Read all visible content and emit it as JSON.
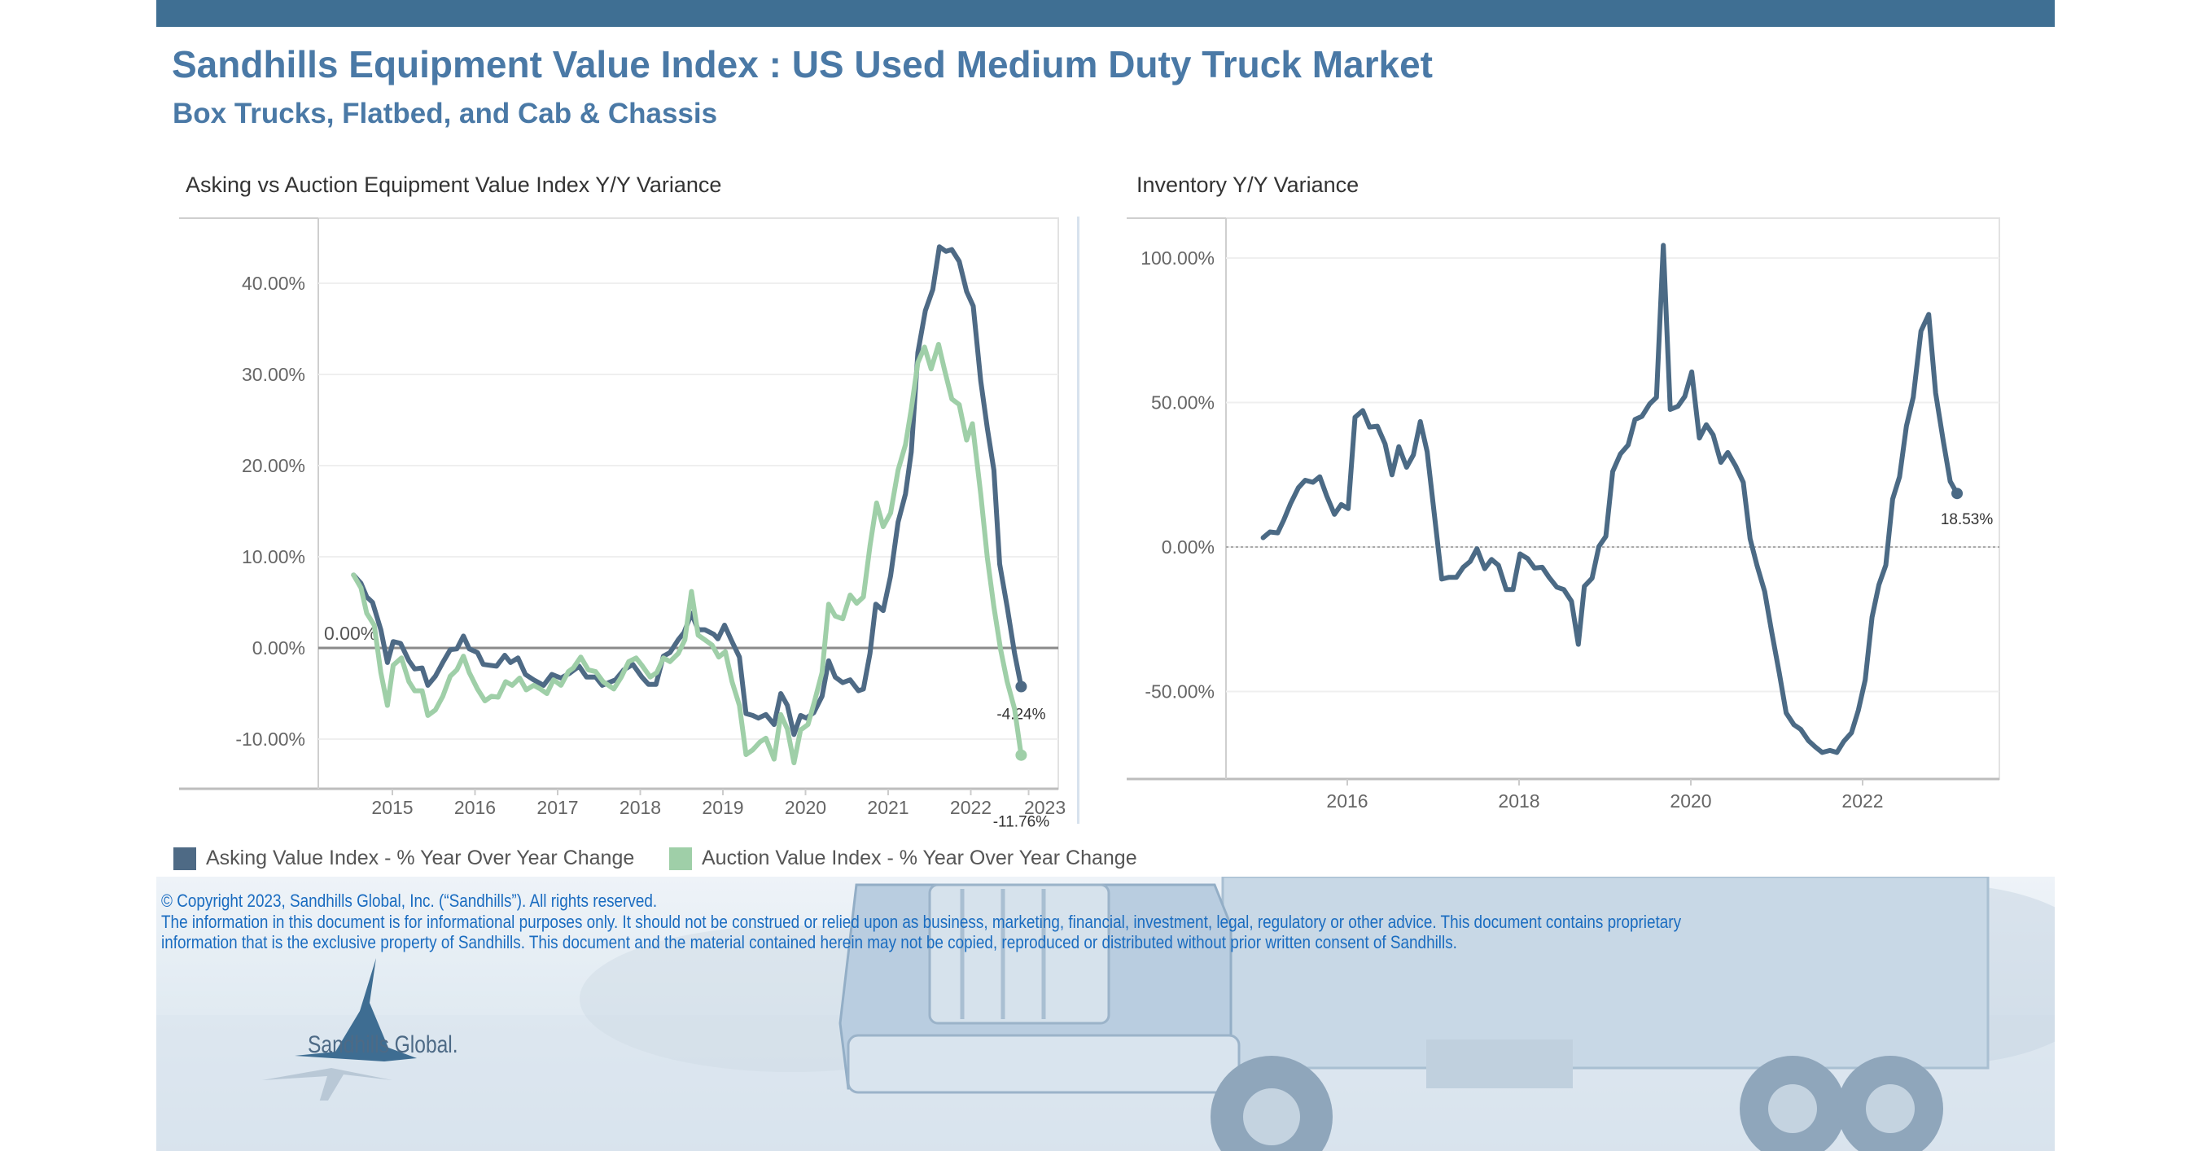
{
  "header": {
    "title": "Sandhills Equipment Value Index : US Used Medium Duty Truck Market",
    "subtitle": "Box Trucks, Flatbed, and Cab & Chassis"
  },
  "colors": {
    "brand": "#4a79a6",
    "asking": "#4e6a85",
    "auction": "#9fcfa8",
    "inventory": "#4b6a85",
    "footer_text": "#1a6cc0"
  },
  "chart_data": [
    {
      "type": "line",
      "title": "Asking vs Auction Equipment Value Index Y/Y Variance",
      "xlabel": "",
      "ylabel": "",
      "ylim": [
        -15.5,
        46
      ],
      "xlim": [
        2014.1,
        2023.1
      ],
      "x_ticks": [
        "2015",
        "2016",
        "2017",
        "2018",
        "2019",
        "2020",
        "2021",
        "2022",
        "2023"
      ],
      "x_tick_values": [
        2015,
        2016,
        2017,
        2018,
        2019,
        2020,
        2021,
        2022,
        2022.7
      ],
      "y_ticks": [
        "40.00%",
        "30.00%",
        "20.00%",
        "10.00%",
        "0.00%",
        "-10.00%"
      ],
      "y_tick_values": [
        40,
        30,
        20,
        10,
        0,
        -10
      ],
      "reference_line": {
        "value": 0,
        "label": "0.00%"
      },
      "legend_position": "bottom-left",
      "legend": [
        "Asking Value Index - % Year Over Year Change",
        "Auction Value Index - % Year Over Year Change"
      ],
      "series": [
        {
          "name": "Asking Value Index - % Year Over Year Change",
          "end_label": "-4.24%",
          "x": [
            2014.53,
            2014.62,
            2014.69,
            2014.76,
            2014.86,
            2014.94,
            2015.01,
            2015.1,
            2015.2,
            2015.27,
            2015.36,
            2015.43,
            2015.52,
            2015.61,
            2015.7,
            2015.78,
            2015.86,
            2015.93,
            2016.03,
            2016.1,
            2016.26,
            2016.36,
            2016.43,
            2016.52,
            2016.61,
            2016.71,
            2016.83,
            2016.93,
            2017.04,
            2017.14,
            2017.26,
            2017.35,
            2017.46,
            2017.54,
            2017.7,
            2017.8,
            2017.91,
            2018.02,
            2018.1,
            2018.19,
            2018.28,
            2018.36,
            2018.46,
            2018.53,
            2018.62,
            2018.7,
            2018.78,
            2018.89,
            2018.94,
            2019.02,
            2019.11,
            2019.2,
            2019.28,
            2019.36,
            2019.43,
            2019.52,
            2019.62,
            2019.7,
            2019.78,
            2019.86,
            2019.94,
            2020.01,
            2020.1,
            2020.2,
            2020.28,
            2020.36,
            2020.45,
            2020.54,
            2020.64,
            2020.7,
            2020.78,
            2020.85,
            2020.94,
            2021.03,
            2021.12,
            2021.21,
            2021.28,
            2021.36,
            2021.45,
            2021.54,
            2021.62,
            2021.7,
            2021.77,
            2021.86,
            2021.95,
            2022.03,
            2022.12,
            2022.2,
            2022.28,
            2022.35,
            2022.44,
            2022.53,
            2022.61
          ],
          "y": [
            8.0,
            7.1,
            5.6,
            5.0,
            2.0,
            -1.6,
            0.7,
            0.5,
            -1.4,
            -2.3,
            -2.2,
            -4.1,
            -3.1,
            -1.6,
            -0.2,
            -0.1,
            1.3,
            -0.1,
            -0.5,
            -1.8,
            -2.0,
            -0.8,
            -1.6,
            -1.1,
            -2.9,
            -3.5,
            -4.1,
            -2.9,
            -3.3,
            -2.8,
            -2.0,
            -3.2,
            -3.2,
            -4.1,
            -3.5,
            -2.4,
            -1.8,
            -3.2,
            -4.0,
            -4.0,
            -0.9,
            -0.5,
            0.9,
            1.7,
            3.8,
            2.0,
            2.0,
            1.5,
            1.0,
            2.5,
            0.7,
            -1.0,
            -7.2,
            -7.4,
            -7.7,
            -7.3,
            -8.4,
            -5.0,
            -6.3,
            -9.5,
            -7.4,
            -7.7,
            -7.1,
            -5.3,
            -1.4,
            -3.2,
            -3.8,
            -3.5,
            -4.7,
            -4.5,
            -0.6,
            4.8,
            4.1,
            7.9,
            13.8,
            16.9,
            21.5,
            32.4,
            37.0,
            39.3,
            44.0,
            43.5,
            43.7,
            42.4,
            39.1,
            37.5,
            29.3,
            24.1,
            19.5,
            9.2,
            4.5,
            -0.6,
            -4.24
          ]
        },
        {
          "name": "Auction Value Index - % Year Over Year Change",
          "end_label": "-11.76%",
          "x": [
            2014.53,
            2014.62,
            2014.69,
            2014.78,
            2014.86,
            2014.94,
            2015.01,
            2015.11,
            2015.2,
            2015.27,
            2015.36,
            2015.43,
            2015.52,
            2015.61,
            2015.7,
            2015.78,
            2015.86,
            2015.93,
            2016.03,
            2016.12,
            2016.2,
            2016.28,
            2016.37,
            2016.45,
            2016.54,
            2016.62,
            2016.71,
            2016.79,
            2016.87,
            2016.95,
            2017.04,
            2017.13,
            2017.19,
            2017.28,
            2017.37,
            2017.46,
            2017.55,
            2017.68,
            2017.77,
            2017.86,
            2017.95,
            2018.02,
            2018.12,
            2018.2,
            2018.28,
            2018.36,
            2018.46,
            2018.54,
            2018.62,
            2018.7,
            2018.78,
            2018.87,
            2018.95,
            2019.03,
            2019.11,
            2019.2,
            2019.28,
            2019.36,
            2019.45,
            2019.52,
            2019.62,
            2019.7,
            2019.78,
            2019.86,
            2019.94,
            2020.03,
            2020.11,
            2020.2,
            2020.28,
            2020.36,
            2020.45,
            2020.54,
            2020.62,
            2020.7,
            2020.78,
            2020.86,
            2020.94,
            2021.03,
            2021.12,
            2021.21,
            2021.28,
            2021.36,
            2021.44,
            2021.52,
            2021.61,
            2021.68,
            2021.77,
            2021.86,
            2021.95,
            2022.02,
            2022.12,
            2022.2,
            2022.28,
            2022.36,
            2022.44,
            2022.53,
            2022.61
          ],
          "y": [
            8.0,
            6.6,
            3.8,
            2.5,
            -2.7,
            -6.3,
            -1.9,
            -1.1,
            -3.7,
            -4.7,
            -4.7,
            -7.4,
            -6.8,
            -5.3,
            -3.1,
            -2.4,
            -0.9,
            -2.7,
            -4.5,
            -5.8,
            -5.3,
            -5.4,
            -3.7,
            -4.1,
            -3.3,
            -4.6,
            -4.1,
            -4.5,
            -5.0,
            -3.5,
            -4.1,
            -2.6,
            -2.2,
            -1.0,
            -2.4,
            -2.6,
            -3.7,
            -4.5,
            -3.2,
            -1.5,
            -1.1,
            -1.9,
            -3.2,
            -2.7,
            -1.1,
            -1.5,
            -0.6,
            0.9,
            6.2,
            1.4,
            0.9,
            0.3,
            -1.0,
            -0.4,
            -3.7,
            -6.3,
            -11.7,
            -11.2,
            -10.3,
            -9.9,
            -12.2,
            -7.3,
            -8.9,
            -12.6,
            -9.0,
            -8.4,
            -5.8,
            -2.7,
            4.8,
            3.5,
            3.2,
            5.8,
            4.9,
            5.6,
            11.2,
            15.9,
            13.3,
            14.8,
            19.5,
            22.3,
            26.2,
            31.3,
            33.0,
            30.6,
            33.3,
            30.6,
            27.3,
            26.7,
            22.8,
            24.6,
            16.9,
            9.9,
            4.5,
            -0.1,
            -3.7,
            -6.7,
            -11.76
          ]
        }
      ]
    },
    {
      "type": "line",
      "title": "Inventory Y/Y Variance",
      "xlabel": "",
      "ylabel": "",
      "ylim": [
        -79,
        115
      ],
      "xlim": [
        2014.55,
        2023.45
      ],
      "x_ticks": [
        "2016",
        "2018",
        "2020",
        "2022"
      ],
      "x_tick_values": [
        2016,
        2018,
        2020,
        2022
      ],
      "y_ticks": [
        "100.00%",
        "50.00%",
        "0.00%",
        "-50.00%"
      ],
      "y_tick_values": [
        100,
        50,
        0,
        -50
      ],
      "reference_line": {
        "value": 0,
        "style": "dotted"
      },
      "series": [
        {
          "name": "Inventory Y/Y Variance",
          "end_label": "18.53%",
          "x": [
            2015.02,
            2015.1,
            2015.19,
            2015.26,
            2015.34,
            2015.43,
            2015.51,
            2015.6,
            2015.68,
            2015.76,
            2015.85,
            2015.93,
            2016.01,
            2016.09,
            2016.18,
            2016.26,
            2016.35,
            2016.44,
            2016.52,
            2016.6,
            2016.69,
            2016.77,
            2016.85,
            2016.93,
            2017.01,
            2017.1,
            2017.18,
            2017.27,
            2017.35,
            2017.43,
            2017.51,
            2017.6,
            2017.68,
            2017.76,
            2017.85,
            2017.93,
            2018.01,
            2018.1,
            2018.18,
            2018.27,
            2018.35,
            2018.44,
            2018.52,
            2018.61,
            2018.69,
            2018.76,
            2018.85,
            2018.93,
            2019.01,
            2019.09,
            2019.18,
            2019.27,
            2019.35,
            2019.43,
            2019.52,
            2019.6,
            2019.68,
            2019.76,
            2019.85,
            2019.93,
            2020.01,
            2020.1,
            2020.18,
            2020.26,
            2020.35,
            2020.43,
            2020.52,
            2020.61,
            2020.69,
            2020.77,
            2020.86,
            2020.94,
            2021.03,
            2021.11,
            2021.2,
            2021.28,
            2021.37,
            2021.45,
            2021.53,
            2021.62,
            2021.7,
            2021.78,
            2021.87,
            2021.95,
            2022.03,
            2022.11,
            2022.19,
            2022.27,
            2022.35,
            2022.43,
            2022.51,
            2022.59,
            2022.68,
            2022.77,
            2022.85,
            2022.94,
            2023.02,
            2023.1
          ],
          "y": [
            3.2,
            5.2,
            4.9,
            9.3,
            15.1,
            20.5,
            23.1,
            22.4,
            24.3,
            17.7,
            11.3,
            14.7,
            13.3,
            44.9,
            47.2,
            41.5,
            41.8,
            35.7,
            25.0,
            34.7,
            27.6,
            31.9,
            43.4,
            33.0,
            12.1,
            -11.1,
            -10.5,
            -10.5,
            -7.0,
            -5.0,
            -0.6,
            -7.5,
            -4.3,
            -6.3,
            -14.7,
            -14.7,
            -2.4,
            -4.0,
            -7.3,
            -7.0,
            -10.5,
            -13.9,
            -14.7,
            -18.8,
            -33.7,
            -13.6,
            -10.8,
            0.2,
            3.7,
            26.1,
            32.2,
            35.3,
            44.1,
            45.2,
            49.5,
            51.8,
            104.4,
            47.6,
            48.7,
            52.1,
            60.6,
            37.7,
            42.3,
            38.8,
            29.3,
            32.7,
            28.1,
            22.4,
            2.9,
            -6.3,
            -15.4,
            -29.2,
            -43.7,
            -57.4,
            -61.5,
            -63.1,
            -67.0,
            -69.2,
            -71.1,
            -70.4,
            -71.1,
            -67.3,
            -64.3,
            -56.6,
            -46.0,
            -24.3,
            -13.1,
            -6.3,
            16.6,
            24.3,
            41.8,
            51.8,
            74.7,
            80.5,
            53.3,
            36.5,
            22.7,
            18.53
          ]
        }
      ]
    }
  ],
  "footer": {
    "copyright": "© Copyright 2023, Sandhills Global, Inc. (“Sandhills”). All rights reserved.",
    "disclaimer_1": "The information in this document is for informational purposes only.  It should not be construed or relied upon as business, marketing, financial, investment, legal, regulatory or other advice. This document contains proprietary",
    "disclaimer_2": "information that is the exclusive property of Sandhills. This document and the material contained herein may not be copied, reproduced or distributed without prior written consent of Sandhills.",
    "logo_text": "Sandhills Global."
  }
}
